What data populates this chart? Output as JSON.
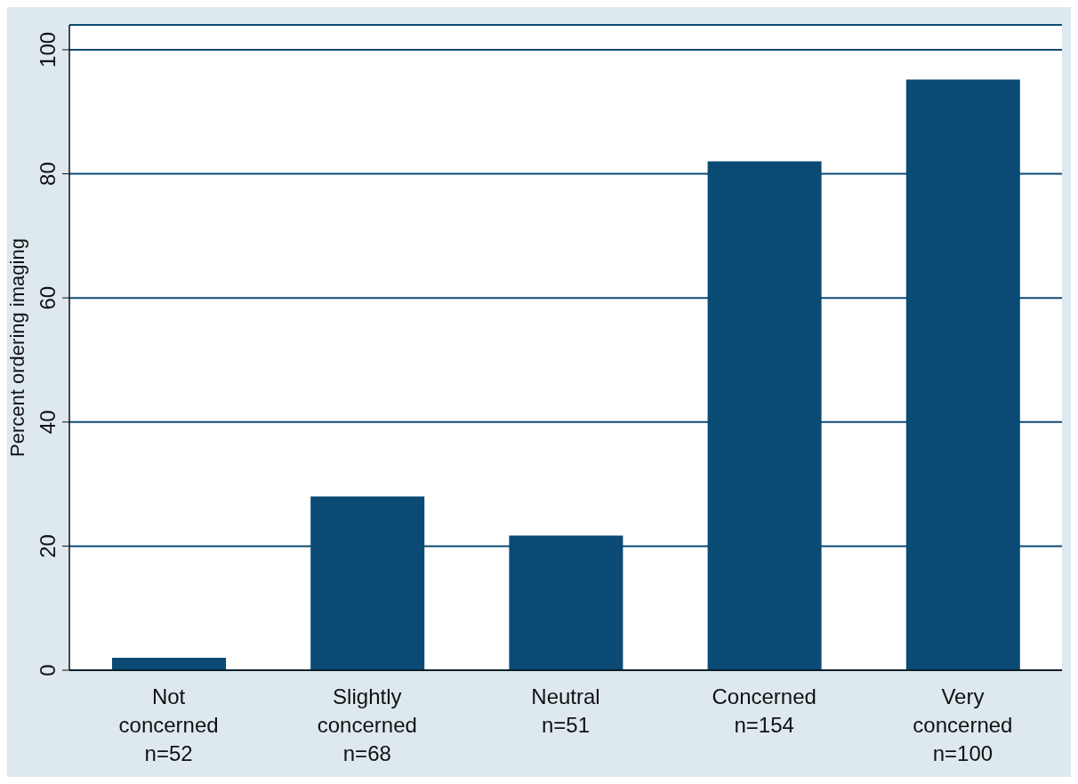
{
  "chart_data": {
    "type": "bar",
    "ylabel": "Percent ordering imaging",
    "categories": [
      "Not\nconcerned\nn=52",
      "Slightly\nconcerned\nn=68",
      "Neutral\n\nn=51",
      "Concerned\n\nn=154",
      "Very\nconcerned\nn=100"
    ],
    "values": [
      2,
      28,
      21.7,
      82,
      95.2
    ],
    "color": "#0b4a74",
    "ylim": [
      0,
      104
    ],
    "yticks": [
      0,
      20,
      40,
      60,
      80,
      100
    ],
    "grid": "y"
  }
}
